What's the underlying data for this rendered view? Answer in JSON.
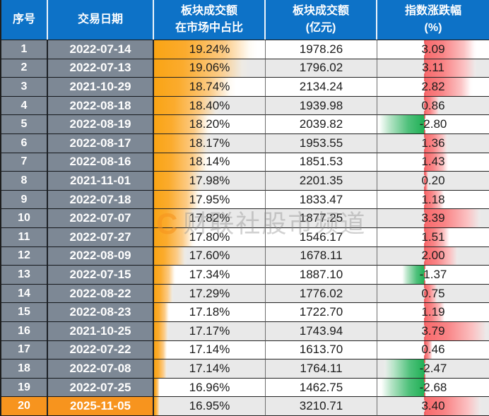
{
  "colors": {
    "header_bg": "#0D72C7",
    "label_bg": "#7D8895",
    "highlight_bg": "#F7941E",
    "row_bg": "#FFFFFF",
    "row_alt_bg": "#E9E9E9",
    "text_dark": "#1B1B1B",
    "bar_orange": "#FAA414",
    "bar_red": "#F8696B",
    "bar_green": "#1FAF54",
    "axis_red": "#E85457",
    "watermark_orange": "#F7941E",
    "watermark_gray": "#878787"
  },
  "header": {
    "col1": {
      "line1": "序号",
      "line2": ""
    },
    "col2": {
      "line1": "交易日期",
      "line2": ""
    },
    "col3": {
      "line1": "板块成交额",
      "line2": "在市场中占比"
    },
    "col4": {
      "line1": "板块成交额",
      "line2": "(亿元)"
    },
    "col5": {
      "line1": "指数涨跌幅",
      "line2": "(%)"
    }
  },
  "watermark": {
    "logo": "C",
    "text": "财联社股市频道"
  },
  "table": {
    "highlight_row": 20,
    "rows": [
      {
        "idx": "1",
        "date": "2022-07-14",
        "pct": "19.24%",
        "pct_value": 19.24,
        "amount": "1978.26",
        "change": "3.09",
        "change_value": 3.09
      },
      {
        "idx": "2",
        "date": "2022-07-13",
        "pct": "19.06%",
        "pct_value": 19.06,
        "amount": "1796.02",
        "change": "3.11",
        "change_value": 3.11
      },
      {
        "idx": "3",
        "date": "2021-10-29",
        "pct": "18.74%",
        "pct_value": 18.74,
        "amount": "2134.24",
        "change": "2.82",
        "change_value": 2.82
      },
      {
        "idx": "4",
        "date": "2022-08-18",
        "pct": "18.40%",
        "pct_value": 18.4,
        "amount": "1939.98",
        "change": "0.86",
        "change_value": 0.86
      },
      {
        "idx": "5",
        "date": "2022-08-19",
        "pct": "18.20%",
        "pct_value": 18.2,
        "amount": "2039.82",
        "change": "-2.80",
        "change_value": -2.8
      },
      {
        "idx": "6",
        "date": "2022-08-17",
        "pct": "18.17%",
        "pct_value": 18.17,
        "amount": "1953.55",
        "change": "1.36",
        "change_value": 1.36
      },
      {
        "idx": "7",
        "date": "2022-08-16",
        "pct": "18.14%",
        "pct_value": 18.14,
        "amount": "1851.53",
        "change": "1.43",
        "change_value": 1.43
      },
      {
        "idx": "8",
        "date": "2021-11-01",
        "pct": "17.98%",
        "pct_value": 17.98,
        "amount": "2201.35",
        "change": "0.20",
        "change_value": 0.2
      },
      {
        "idx": "9",
        "date": "2022-07-18",
        "pct": "17.95%",
        "pct_value": 17.95,
        "amount": "1833.47",
        "change": "1.18",
        "change_value": 1.18
      },
      {
        "idx": "10",
        "date": "2022-07-07",
        "pct": "17.82%",
        "pct_value": 17.82,
        "amount": "1877.25",
        "change": "3.39",
        "change_value": 3.39
      },
      {
        "idx": "11",
        "date": "2022-07-27",
        "pct": "17.80%",
        "pct_value": 17.8,
        "amount": "1546.17",
        "change": "1.51",
        "change_value": 1.51
      },
      {
        "idx": "12",
        "date": "2022-08-09",
        "pct": "17.60%",
        "pct_value": 17.6,
        "amount": "1678.11",
        "change": "2.00",
        "change_value": 2.0
      },
      {
        "idx": "13",
        "date": "2022-07-15",
        "pct": "17.34%",
        "pct_value": 17.34,
        "amount": "1887.10",
        "change": "-1.37",
        "change_value": -1.37
      },
      {
        "idx": "14",
        "date": "2022-08-22",
        "pct": "17.29%",
        "pct_value": 17.29,
        "amount": "1776.02",
        "change": "0.75",
        "change_value": 0.75
      },
      {
        "idx": "15",
        "date": "2022-08-23",
        "pct": "17.18%",
        "pct_value": 17.18,
        "amount": "1722.70",
        "change": "1.19",
        "change_value": 1.19
      },
      {
        "idx": "16",
        "date": "2021-10-25",
        "pct": "17.17%",
        "pct_value": 17.17,
        "amount": "1743.94",
        "change": "3.79",
        "change_value": 3.79
      },
      {
        "idx": "17",
        "date": "2022-07-22",
        "pct": "17.14%",
        "pct_value": 17.14,
        "amount": "1613.70",
        "change": "0.46",
        "change_value": 0.46
      },
      {
        "idx": "18",
        "date": "2022-07-08",
        "pct": "17.14%",
        "pct_value": 17.14,
        "amount": "1764.11",
        "change": "-2.47",
        "change_value": -2.47
      },
      {
        "idx": "19",
        "date": "2022-07-25",
        "pct": "16.96%",
        "pct_value": 16.96,
        "amount": "1462.75",
        "change": "-2.68",
        "change_value": -2.68
      },
      {
        "idx": "20",
        "date": "2025-11-05",
        "pct": "16.95%",
        "pct_value": 16.95,
        "amount": "3210.71",
        "change": "3.40",
        "change_value": 3.4
      }
    ]
  },
  "chart_data": {
    "type": "table",
    "columns": [
      "序号",
      "交易日期",
      "板块成交额在市场中占比",
      "板块成交额(亿元)",
      "指数涨跌幅(%)"
    ],
    "rows": [
      [
        1,
        "2022-07-14",
        19.24,
        1978.26,
        3.09
      ],
      [
        2,
        "2022-07-13",
        19.06,
        1796.02,
        3.11
      ],
      [
        3,
        "2021-10-29",
        18.74,
        2134.24,
        2.82
      ],
      [
        4,
        "2022-08-18",
        18.4,
        1939.98,
        0.86
      ],
      [
        5,
        "2022-08-19",
        18.2,
        2039.82,
        -2.8
      ],
      [
        6,
        "2022-08-17",
        18.17,
        1953.55,
        1.36
      ],
      [
        7,
        "2022-08-16",
        18.14,
        1851.53,
        1.43
      ],
      [
        8,
        "2021-11-01",
        17.98,
        2201.35,
        0.2
      ],
      [
        9,
        "2022-07-18",
        17.95,
        1833.47,
        1.18
      ],
      [
        10,
        "2022-07-07",
        17.82,
        1877.25,
        3.39
      ],
      [
        11,
        "2022-07-27",
        17.8,
        1546.17,
        1.51
      ],
      [
        12,
        "2022-08-09",
        17.6,
        1678.11,
        2.0
      ],
      [
        13,
        "2022-07-15",
        17.34,
        1887.1,
        -1.37
      ],
      [
        14,
        "2022-08-22",
        17.29,
        1776.02,
        0.75
      ],
      [
        15,
        "2022-08-23",
        17.18,
        1722.7,
        1.19
      ],
      [
        16,
        "2021-10-25",
        17.17,
        1743.94,
        3.79
      ],
      [
        17,
        "2022-07-22",
        17.14,
        1613.7,
        0.46
      ],
      [
        18,
        "2022-07-08",
        17.14,
        1764.11,
        -2.47
      ],
      [
        19,
        "2022-07-25",
        16.96,
        1462.75,
        -2.68
      ],
      [
        20,
        "2025-11-05",
        16.95,
        3210.71,
        3.4
      ]
    ],
    "pct_databar": {
      "style": "gradient-bar",
      "color": "#FAA414",
      "min": 16.95,
      "max": 19.24,
      "min_width_frac": 0.05,
      "max_width_frac": 0.93
    },
    "change_databar": {
      "style": "diverging-gradient-bar",
      "positive_color": "#F8696B",
      "negative_color": "#1FAF54",
      "min": -2.8,
      "max": 3.79,
      "axis_frac": 0.425
    },
    "legend_position": "none",
    "grid": true
  }
}
